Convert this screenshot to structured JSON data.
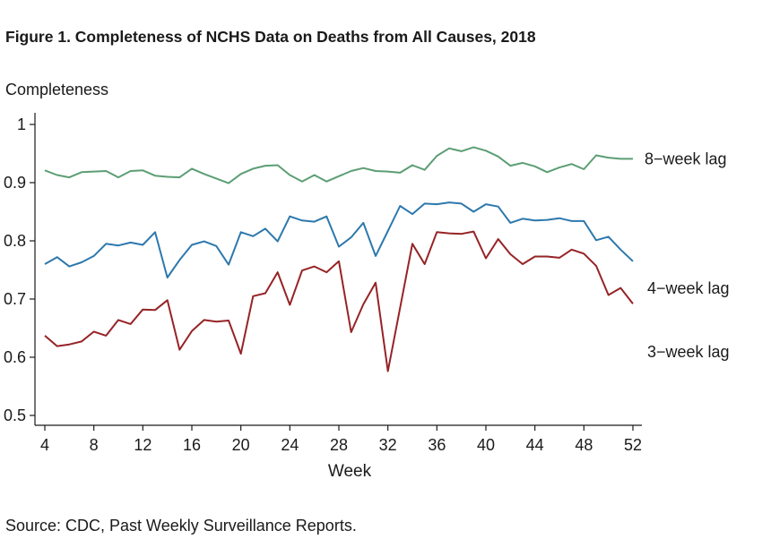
{
  "figure": {
    "title": "Figure 1. Completeness of NCHS Data on Deaths from All Causes, 2018",
    "source": "Source: CDC, Past Weekly Surveillance Reports."
  },
  "chart_data": {
    "type": "line",
    "title": "Figure 1. Completeness of NCHS Data on Deaths from All Causes, 2018",
    "xlabel": "Week",
    "ylabel": "Completeness",
    "xlim": [
      4,
      52
    ],
    "ylim": [
      0.5,
      1
    ],
    "xticks": [
      4,
      8,
      12,
      16,
      20,
      24,
      28,
      32,
      36,
      40,
      44,
      48,
      52
    ],
    "yticks": [
      0.5,
      0.6,
      0.7,
      0.8,
      0.9,
      1
    ],
    "ytick_labels": [
      "0.5",
      "0.6",
      "0.7",
      "0.8",
      "0.9",
      "1"
    ],
    "grid": false,
    "legend": "direct labels at right end of lines",
    "x": [
      4,
      5,
      6,
      7,
      8,
      9,
      10,
      11,
      12,
      13,
      14,
      15,
      16,
      17,
      18,
      19,
      20,
      21,
      22,
      23,
      24,
      25,
      26,
      27,
      28,
      29,
      30,
      31,
      32,
      33,
      34,
      35,
      36,
      37,
      38,
      39,
      40,
      41,
      42,
      43,
      44,
      45,
      46,
      47,
      48,
      49,
      50,
      51,
      52
    ],
    "series": [
      {
        "name": "8−week lag",
        "color": "#5c9e74",
        "values": [
          0.921,
          0.913,
          0.909,
          0.918,
          0.919,
          0.92,
          0.909,
          0.92,
          0.921,
          0.912,
          0.91,
          0.909,
          0.924,
          0.915,
          0.907,
          0.899,
          0.915,
          0.924,
          0.929,
          0.93,
          0.913,
          0.902,
          0.913,
          0.902,
          0.911,
          0.92,
          0.925,
          0.92,
          0.919,
          0.917,
          0.93,
          0.922,
          0.946,
          0.959,
          0.954,
          0.961,
          0.955,
          0.945,
          0.929,
          0.934,
          0.928,
          0.918,
          0.926,
          0.932,
          0.923,
          0.947,
          0.943,
          0.941,
          0.941
        ]
      },
      {
        "name": "4−week lag",
        "color": "#2d78ad",
        "values": [
          0.76,
          0.772,
          0.756,
          0.763,
          0.774,
          0.795,
          0.792,
          0.797,
          0.793,
          0.815,
          0.737,
          0.767,
          0.793,
          0.799,
          0.791,
          0.759,
          0.815,
          0.808,
          0.821,
          0.799,
          0.842,
          0.835,
          0.833,
          0.842,
          0.79,
          0.806,
          0.831,
          0.774,
          0.817,
          0.86,
          0.846,
          0.864,
          0.863,
          0.866,
          0.864,
          0.85,
          0.863,
          0.859,
          0.831,
          0.838,
          0.835,
          0.836,
          0.839,
          0.834,
          0.834,
          0.801,
          0.807,
          0.785,
          0.765
        ]
      },
      {
        "name": "3−week lag",
        "color": "#962326",
        "values": [
          0.637,
          0.619,
          0.622,
          0.627,
          0.644,
          0.637,
          0.664,
          0.657,
          0.682,
          0.681,
          0.698,
          0.613,
          0.645,
          0.664,
          0.661,
          0.663,
          0.606,
          0.705,
          0.71,
          0.746,
          0.69,
          0.749,
          0.756,
          0.746,
          0.765,
          0.643,
          0.691,
          0.728,
          0.576,
          0.685,
          0.795,
          0.76,
          0.815,
          0.813,
          0.812,
          0.816,
          0.77,
          0.803,
          0.777,
          0.76,
          0.773,
          0.773,
          0.771,
          0.785,
          0.778,
          0.757,
          0.707,
          0.719,
          0.692
        ]
      }
    ]
  }
}
